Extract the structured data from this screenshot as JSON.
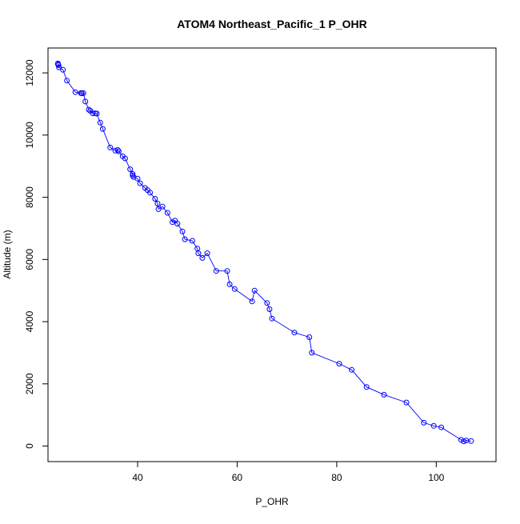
{
  "chart_data": {
    "type": "line",
    "title": "ATOM4 Northeast_Pacific_1 P_OHR",
    "xlabel": "P_OHR",
    "ylabel": "Altitude (m)",
    "xlim": [
      22,
      112
    ],
    "ylim": [
      -500,
      12800
    ],
    "x_ticks": [
      40,
      60,
      80,
      100
    ],
    "y_ticks": [
      0,
      2000,
      4000,
      6000,
      8000,
      10000,
      12000
    ],
    "grid": false,
    "legend": "none",
    "markers": "open-circle",
    "color": "#0000ff",
    "series": [
      {
        "points": [
          [
            24,
            12300
          ],
          [
            24,
            12280
          ],
          [
            24.1,
            12250
          ],
          [
            24.2,
            12180
          ],
          [
            25,
            12100
          ],
          [
            25.8,
            11750
          ],
          [
            27.5,
            11380
          ],
          [
            28.6,
            11350
          ],
          [
            28.8,
            11340
          ],
          [
            29.1,
            11350
          ],
          [
            29.5,
            11080
          ],
          [
            30.2,
            10820
          ],
          [
            30.5,
            10780
          ],
          [
            31,
            10700
          ],
          [
            31.5,
            10700
          ],
          [
            31.8,
            10690
          ],
          [
            32.5,
            10400
          ],
          [
            33,
            10200
          ],
          [
            34.5,
            9600
          ],
          [
            35.5,
            9500
          ],
          [
            36,
            9520
          ],
          [
            36.2,
            9480
          ],
          [
            37,
            9320
          ],
          [
            37.5,
            9250
          ],
          [
            38.5,
            8900
          ],
          [
            39,
            8750
          ],
          [
            39,
            8700
          ],
          [
            39.2,
            8650
          ],
          [
            40,
            8600
          ],
          [
            40.5,
            8450
          ],
          [
            41.5,
            8300
          ],
          [
            42,
            8230
          ],
          [
            42.5,
            8150
          ],
          [
            43.5,
            7950
          ],
          [
            44,
            7800
          ],
          [
            44.2,
            7620
          ],
          [
            45,
            7700
          ],
          [
            46,
            7500
          ],
          [
            47,
            7200
          ],
          [
            47.5,
            7250
          ],
          [
            48,
            7150
          ],
          [
            49,
            6900
          ],
          [
            49.5,
            6650
          ],
          [
            51,
            6600
          ],
          [
            52,
            6350
          ],
          [
            52.2,
            6200
          ],
          [
            53,
            6050
          ],
          [
            54,
            6200
          ],
          [
            55.8,
            5630
          ],
          [
            58,
            5630
          ],
          [
            58.5,
            5200
          ],
          [
            59.5,
            5050
          ],
          [
            63,
            4650
          ],
          [
            63.5,
            5000
          ],
          [
            66,
            4600
          ],
          [
            66.5,
            4400
          ],
          [
            67,
            4100
          ],
          [
            71.5,
            3650
          ],
          [
            74.5,
            3500
          ],
          [
            75,
            3000
          ],
          [
            80.5,
            2650
          ],
          [
            83,
            2450
          ],
          [
            86,
            1900
          ],
          [
            89.5,
            1650
          ],
          [
            94,
            1400
          ],
          [
            97.5,
            750
          ],
          [
            99.5,
            650
          ],
          [
            101,
            600
          ],
          [
            105,
            200
          ],
          [
            105.5,
            150
          ],
          [
            106,
            180
          ],
          [
            107,
            160
          ]
        ]
      }
    ]
  }
}
